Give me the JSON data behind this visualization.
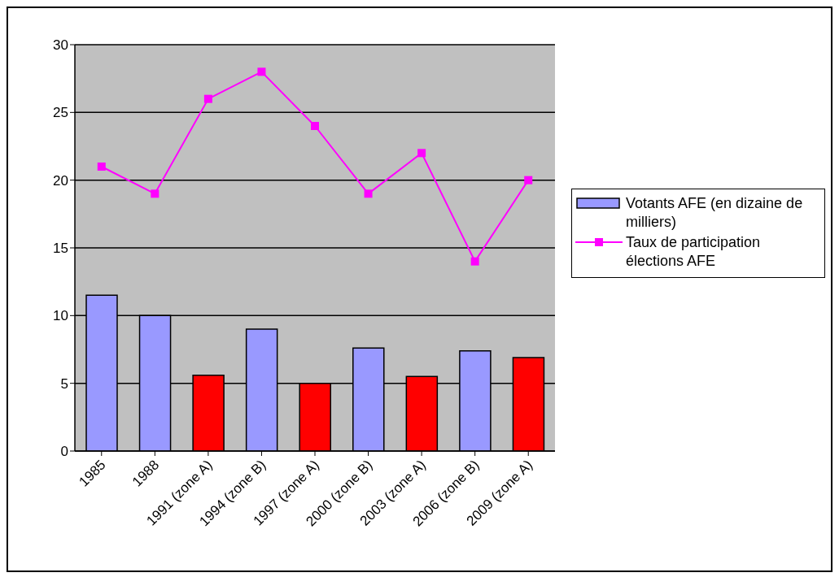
{
  "chart_data": {
    "type": "bar",
    "categories": [
      "1985",
      "1988",
      "1991 (zone A)",
      "1994 (zone B)",
      "1997 (zone A)",
      "2000 (zone B)",
      "2003 (zone A)",
      "2006 (zone B)",
      "2009 (zone A)"
    ],
    "series": [
      {
        "name": "Votants AFE  (en dizaine de milliers)",
        "color": "#9999ff",
        "colors": [
          "#9999ff",
          "#9999ff",
          "#ff0000",
          "#9999ff",
          "#ff0000",
          "#9999ff",
          "#ff0000",
          "#9999ff",
          "#ff0000"
        ],
        "values": [
          11.5,
          10,
          5.6,
          9,
          5,
          7.6,
          5.5,
          7.4,
          6.9
        ]
      },
      {
        "name": "Taux de participation élections AFE",
        "type": "line",
        "color": "#ff00ff",
        "values": [
          21,
          19,
          26,
          28,
          24,
          19,
          22,
          14,
          20
        ]
      }
    ],
    "ylim": [
      0,
      30
    ],
    "yticks": [
      0,
      5,
      10,
      15,
      20,
      25,
      30
    ],
    "grid": "y",
    "legend": "right",
    "marker": "square",
    "line_style": "solid"
  }
}
